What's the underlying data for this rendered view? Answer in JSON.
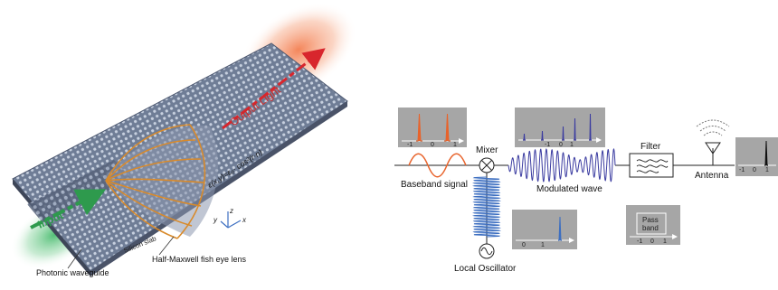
{
  "left_panel": {
    "input_label": "Input",
    "output_label": "Output Light",
    "formula": "ε(x,y)=ε₀· cos²(r·n)",
    "silicon_label": "Silicon slab",
    "axis_z": "z",
    "axis_y": "y",
    "axis_x": "x",
    "photonic_label": "Photonic waveguide",
    "lens_label": "Half-Maxwell fish eye lens"
  },
  "right_panel": {
    "mixer_label": "Mixer",
    "filter_label": "Filter",
    "antenna_label": "Antenna",
    "baseband_label": "Baseband signal",
    "modulated_label": "Modulated wave",
    "oscillator_label": "Local Oscillator",
    "passband_line1": "Pass",
    "passband_line2": "band",
    "plot_baseband_ticks": [
      "-1",
      "0",
      "1"
    ],
    "plot_modulated_ticks": [
      "-1",
      "0",
      "1"
    ],
    "plot_lo_ticks": [
      "0",
      "1"
    ],
    "plot_passband_ticks": [
      "-1",
      "0",
      "1"
    ],
    "plot_antenna_ticks": [
      "-1",
      "0",
      "1"
    ]
  },
  "colors": {
    "plot_bg": "#a6a6a6",
    "orange": "#e8632b",
    "blue": "#3d6fc1",
    "purple": "#3a3ba0",
    "red_arrow": "#d8262d",
    "green_arrow": "#2e9a4d",
    "lens_orange": "#d98a2a"
  }
}
